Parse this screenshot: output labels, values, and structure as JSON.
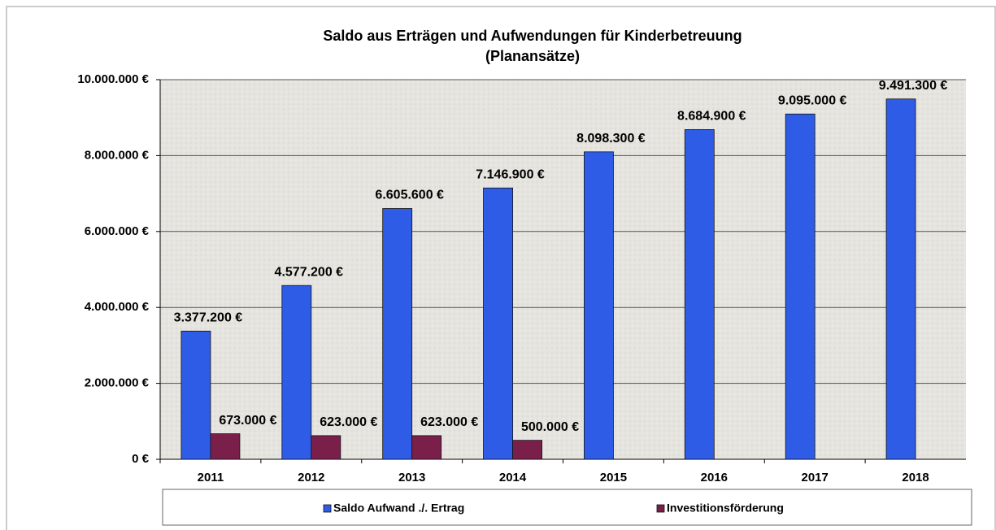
{
  "chart_data": {
    "type": "bar",
    "title": "Saldo aus Erträgen und Aufwendungen für Kinderbetreuung",
    "subtitle": "(Planansätze)",
    "categories": [
      "2011",
      "2012",
      "2013",
      "2014",
      "2015",
      "2016",
      "2017",
      "2018"
    ],
    "series": [
      {
        "name": "Saldo Aufwand ./. Ertrag",
        "color": "#2f5ce6",
        "values": [
          3377200,
          4577200,
          6605600,
          7146900,
          8098300,
          8684900,
          9095000,
          9491300
        ],
        "value_labels": [
          "3.377.200 €",
          "4.577.200 €",
          "6.605.600 €",
          "7.146.900 €",
          "8.098.300 €",
          "8.684.900 €",
          "9.095.000 €",
          "9.491.300 €"
        ]
      },
      {
        "name": "Investitionsförderung",
        "color": "#7a1f4a",
        "values": [
          673000,
          623000,
          623000,
          500000,
          null,
          null,
          null,
          null
        ],
        "value_labels": [
          "673.000 €",
          "623.000 €",
          "623.000 €",
          "500.000 €",
          null,
          null,
          null,
          null
        ]
      }
    ],
    "ylim": [
      0,
      10000000
    ],
    "yticks": [
      {
        "value": 0,
        "label": "0 €"
      },
      {
        "value": 2000000,
        "label": "2.000.000 €"
      },
      {
        "value": 4000000,
        "label": "4.000.000 €"
      },
      {
        "value": 6000000,
        "label": "6.000.000 €"
      },
      {
        "value": 8000000,
        "label": "8.000.000 €"
      },
      {
        "value": 10000000,
        "label": "10.000.000 €"
      }
    ],
    "grid": true,
    "legend": "bottom"
  }
}
